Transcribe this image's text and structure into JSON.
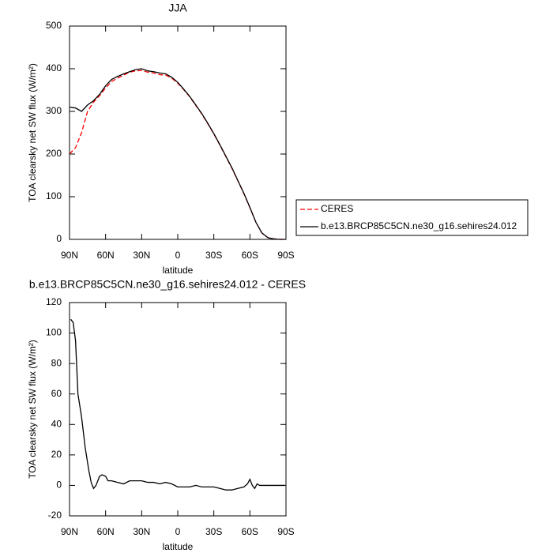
{
  "chart_data": [
    {
      "type": "line",
      "title": "JJA",
      "xlabel": "latitude",
      "ylabel": "TOA clearsky net SW flux (W/m²)",
      "x": [
        90,
        85,
        80,
        75,
        70,
        65,
        60,
        55,
        50,
        45,
        40,
        35,
        30,
        25,
        20,
        15,
        10,
        5,
        0,
        -5,
        -10,
        -15,
        -20,
        -25,
        -30,
        -35,
        -40,
        -45,
        -50,
        -55,
        -60,
        -65,
        -70,
        -75,
        -80,
        -85,
        -90
      ],
      "series": [
        {
          "name": "CERES",
          "color": "#ff0000",
          "dashed": true,
          "values": [
            200,
            215,
            250,
            300,
            322,
            337,
            355,
            370,
            378,
            385,
            392,
            395,
            396,
            392,
            390,
            386,
            385,
            378,
            366,
            351,
            334,
            314,
            294,
            271,
            247,
            221,
            194,
            167,
            137,
            107,
            74,
            40,
            15,
            4,
            1,
            0,
            0
          ]
        },
        {
          "name": "b.e13.BRCP85C5CN.ne30_g16.sehires24.012",
          "color": "#000000",
          "dashed": false,
          "values": [
            310,
            308,
            300,
            315,
            325,
            340,
            360,
            375,
            382,
            388,
            393,
            398,
            400,
            395,
            393,
            390,
            388,
            380,
            368,
            352,
            335,
            315,
            295,
            272,
            248,
            222,
            195,
            168,
            138,
            108,
            75,
            40,
            15,
            4,
            1,
            0,
            0
          ]
        }
      ],
      "xlim": [
        90,
        -90
      ],
      "xticks": [
        {
          "value": 90,
          "label": "90N"
        },
        {
          "value": 60,
          "label": "60N"
        },
        {
          "value": 30,
          "label": "30N"
        },
        0,
        {
          "value": -30,
          "label": "30S"
        },
        {
          "value": -60,
          "label": "60S"
        },
        {
          "value": -90,
          "label": "90S"
        }
      ],
      "ylim": [
        0,
        500
      ],
      "yticks": [
        0,
        100,
        200,
        300,
        400,
        500
      ]
    },
    {
      "type": "line",
      "title": "b.e13.BRCP85C5CN.ne30_g16.sehires24.012 - CERES",
      "xlabel": "latitude",
      "ylabel": "TOA clearsky net SW flux (W/m²)",
      "x": [
        89,
        87,
        85,
        83,
        80,
        77,
        74,
        72,
        70,
        68,
        65,
        63,
        60,
        58,
        55,
        50,
        45,
        40,
        35,
        30,
        25,
        20,
        15,
        10,
        5,
        0,
        -5,
        -10,
        -15,
        -20,
        -25,
        -30,
        -35,
        -40,
        -45,
        -50,
        -55,
        -58,
        -60,
        -62,
        -64,
        -66,
        -68,
        -70,
        -75,
        -80,
        -85,
        -89
      ],
      "series": [
        {
          "color": "#000000",
          "dashed": false,
          "values": [
            109,
            107,
            95,
            60,
            45,
            25,
            10,
            2,
            -2,
            0,
            6,
            7,
            6,
            3,
            3,
            2,
            1,
            3,
            3,
            3,
            2,
            2,
            1,
            2,
            1,
            -1,
            -1,
            -1,
            0,
            -1,
            -1,
            -1,
            -2,
            -3,
            -3,
            -2,
            -1,
            1,
            4,
            0,
            -2,
            1,
            0,
            0,
            0,
            0,
            0,
            0
          ]
        }
      ],
      "xlim": [
        90,
        -90
      ],
      "xticks": [
        {
          "value": 90,
          "label": "90N"
        },
        {
          "value": 60,
          "label": "60N"
        },
        {
          "value": 30,
          "label": "30N"
        },
        0,
        {
          "value": -30,
          "label": "30S"
        },
        {
          "value": -60,
          "label": "60S"
        },
        {
          "value": -90,
          "label": "90S"
        }
      ],
      "ylim": [
        -20,
        120
      ],
      "yticks": [
        -20,
        0,
        20,
        40,
        60,
        80,
        100,
        120
      ]
    }
  ]
}
